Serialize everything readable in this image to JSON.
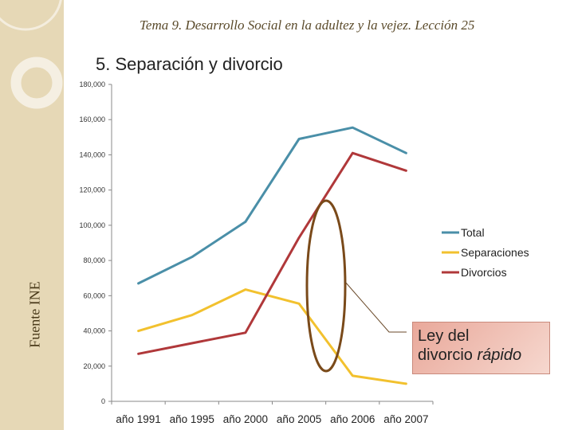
{
  "header": {
    "text": "Tema 9. Desarrollo Social en la adultez y la vejez.  Lección 25"
  },
  "slide": {
    "title": "5. Separación y divorcio"
  },
  "source": {
    "text": "Fuente INE"
  },
  "callout": {
    "line1": "Ley del",
    "line2_plain": "divorcio ",
    "line2_italic": "rápido"
  },
  "colors": {
    "total": "#4a8fa8",
    "separaciones": "#f2c12e",
    "divorcios": "#b0383a",
    "ellipse": "#7a4a1a",
    "band": "#e6d8b6"
  },
  "chart_data": {
    "type": "line",
    "title": "",
    "xlabel": "",
    "ylabel": "",
    "ylim": [
      0,
      180000
    ],
    "yticks": [
      "0",
      "20,000",
      "40,000",
      "60,000",
      "80,000",
      "100,000",
      "120,000",
      "140,000",
      "160,000",
      "180,000"
    ],
    "categories": [
      "año 1991",
      "año 1995",
      "año 2000",
      "año 2005",
      "año 2006",
      "año 2007"
    ],
    "series": [
      {
        "name": "Total",
        "color": "#4a8fa8",
        "values": [
          67000,
          82000,
          102000,
          149000,
          155500,
          141000
        ]
      },
      {
        "name": "Separaciones",
        "color": "#f2c12e",
        "values": [
          40000,
          49000,
          63500,
          55500,
          14500,
          10000
        ]
      },
      {
        "name": "Divorcios",
        "color": "#b0383a",
        "values": [
          27000,
          33000,
          39000,
          93000,
          141000,
          131000
        ]
      }
    ],
    "legend_position": "right"
  }
}
